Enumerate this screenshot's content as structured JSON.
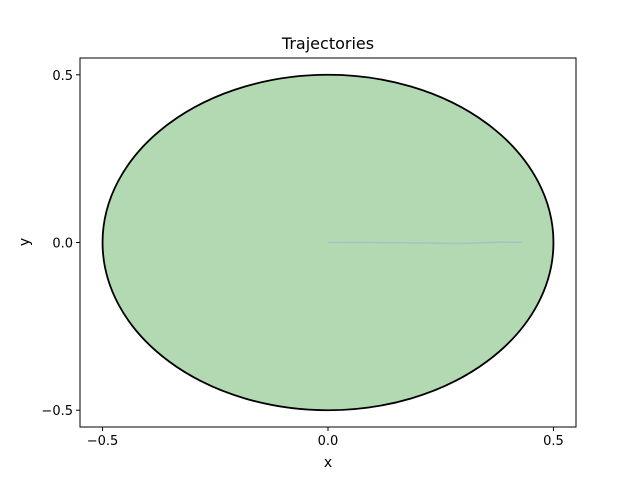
{
  "chart_data": {
    "type": "line",
    "title": "Trajectories",
    "xlabel": "x",
    "ylabel": "y",
    "xlim": [
      -0.55,
      0.55
    ],
    "ylim": [
      -0.55,
      0.55
    ],
    "xticks": [
      -0.5,
      0.0,
      0.5
    ],
    "xtick_labels": [
      "−0.5",
      "0.0",
      "0.5"
    ],
    "yticks": [
      -0.5,
      0.0,
      0.5
    ],
    "ytick_labels": [
      "−0.5",
      "0.0",
      "0.5"
    ],
    "grid": false,
    "boundary": {
      "shape": "circle",
      "center": [
        0,
        0
      ],
      "radius": 0.5,
      "fill_color": "#b3d9b3",
      "edge_color": "#000000"
    },
    "series": [
      {
        "color": "#a3bfc9",
        "x": [
          0.0,
          0.03,
          0.06,
          0.09,
          0.12,
          0.15,
          0.18,
          0.21,
          0.24,
          0.27,
          0.3,
          0.33,
          0.36,
          0.39,
          0.41,
          0.43
        ],
        "y": [
          0.0,
          0.0,
          0.0005,
          0.0,
          -0.0005,
          0.0,
          -0.001,
          -0.0015,
          -0.002,
          -0.003,
          -0.0025,
          -0.001,
          0.0,
          0.001,
          0.0005,
          0.001
        ]
      }
    ]
  }
}
